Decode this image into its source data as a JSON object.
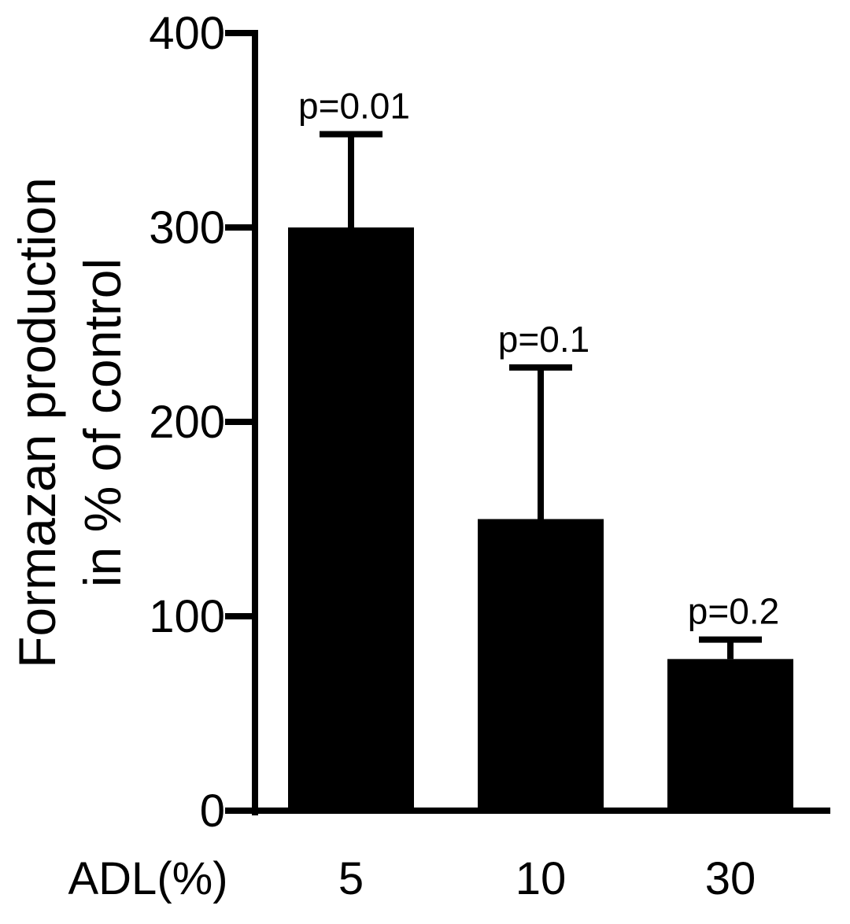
{
  "chart_data": {
    "type": "bar",
    "ylabel_line1": "Formazan production",
    "ylabel_line2": "in % of control",
    "x_prefix_label": "ADL(%)",
    "categories": [
      "5",
      "10",
      "30"
    ],
    "values": [
      300,
      150,
      78
    ],
    "error_upper": [
      348,
      228,
      88
    ],
    "annotations": [
      "p=0.01",
      "p=0.1",
      "p=0.2"
    ],
    "yticks": [
      0,
      100,
      200,
      300,
      400
    ],
    "ylim": [
      0,
      400
    ],
    "grid": false,
    "legend": "none",
    "bar_color": "#000000"
  }
}
